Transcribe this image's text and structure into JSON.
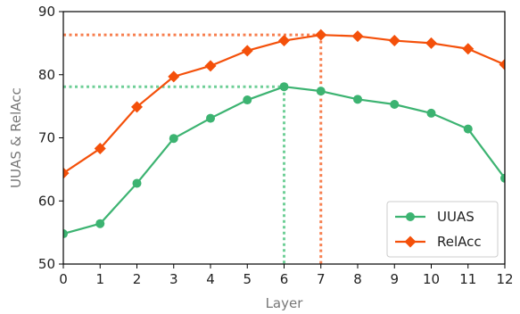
{
  "chart_data": {
    "type": "line",
    "xlabel": "Layer",
    "ylabel": "UUAS & RelAcc",
    "xlim": [
      0,
      12
    ],
    "ylim": [
      50,
      90
    ],
    "x_ticks": [
      "0",
      "1",
      "2",
      "3",
      "4",
      "5",
      "6",
      "7",
      "8",
      "9",
      "10",
      "11",
      "12"
    ],
    "y_ticks": [
      "50",
      "60",
      "70",
      "80",
      "90"
    ],
    "x": [
      0,
      1,
      2,
      3,
      4,
      5,
      6,
      7,
      8,
      9,
      10,
      11,
      12
    ],
    "series": [
      {
        "name": "UUAS",
        "color": "#3cb371",
        "marker": "circle",
        "values": [
          54.8,
          56.4,
          62.8,
          69.9,
          73.1,
          76.0,
          78.1,
          77.4,
          76.1,
          75.3,
          73.9,
          71.4,
          63.6
        ]
      },
      {
        "name": "RelAcc",
        "color": "#f4500a",
        "marker": "diamond",
        "values": [
          64.4,
          68.3,
          74.9,
          79.7,
          81.4,
          83.8,
          85.4,
          86.3,
          86.1,
          85.4,
          85.0,
          84.1,
          81.6
        ]
      }
    ],
    "reference_lines": [
      {
        "series": "UUAS",
        "x": 6,
        "y": 78.1,
        "color": "#6fcf97"
      },
      {
        "series": "RelAcc",
        "x": 7,
        "y": 86.3,
        "color": "#f77f4f"
      }
    ],
    "grid": false,
    "legend_position": "lower-right"
  }
}
